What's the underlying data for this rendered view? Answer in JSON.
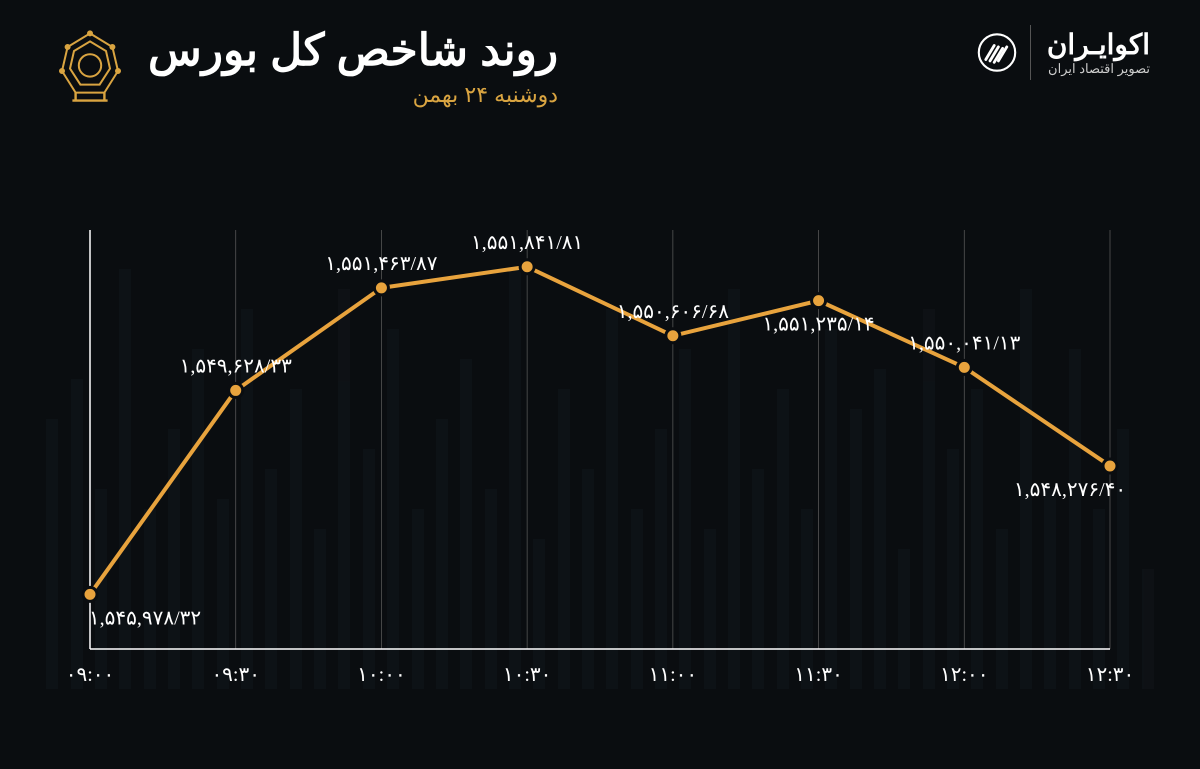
{
  "header": {
    "title": "روند شاخص کل بورس",
    "subtitle": "دوشنبه ۲۴ بهمن",
    "brand_name": "اکوایـران",
    "brand_tag": "تصویر اقتصاد ایران"
  },
  "chart": {
    "type": "line",
    "background_color": "#0a0d10",
    "line_color": "#e8a33d",
    "line_width": 4,
    "marker_radius": 7,
    "marker_fill": "#e8a33d",
    "marker_stroke": "#0a0d10",
    "grid_color": "#555555",
    "axis_color": "#ffffff",
    "text_color": "#ffffff",
    "label_fontsize": 20,
    "value_fontsize": 20,
    "ylim": [
      1545000,
      1552500
    ],
    "x_labels": [
      "۰۹:۰۰",
      "۰۹:۳۰",
      "۱۰:۰۰",
      "۱۰:۳۰",
      "۱۱:۰۰",
      "۱۱:۳۰",
      "۱۲:۰۰",
      "۱۲:۳۰"
    ],
    "values": [
      1545978.32,
      1549628.33,
      1551463.87,
      1551841.81,
      1550606.68,
      1551235.14,
      1550041.13,
      1548276.4
    ],
    "value_labels": [
      "۱,۵۴۵,۹۷۸/۳۲",
      "۱,۵۴۹,۶۲۸/۳۳",
      "۱,۵۵۱,۴۶۳/۸۷",
      "۱,۵۵۱,۸۴۱/۸۱",
      "۱,۵۵۰,۶۰۶/۶۸",
      "۱,۵۵۱,۲۳۵/۱۴",
      "۱,۵۵۰,۰۴۱/۱۳",
      "۱,۵۴۸,۲۷۶/۴۰"
    ],
    "label_positions": [
      "below",
      "above",
      "above",
      "above",
      "above",
      "below",
      "above",
      "below"
    ]
  },
  "bg_bars": [
    120,
    260,
    180,
    340,
    200,
    400,
    160,
    300,
    240,
    380,
    140,
    320,
    280,
    360,
    180,
    300,
    220,
    400,
    160,
    340,
    260,
    180,
    380,
    220,
    300,
    150,
    420,
    200,
    330,
    270,
    180,
    360,
    240,
    400,
    160,
    300,
    220,
    380,
    190,
    340,
    260,
    180,
    420,
    200,
    310,
    270
  ]
}
